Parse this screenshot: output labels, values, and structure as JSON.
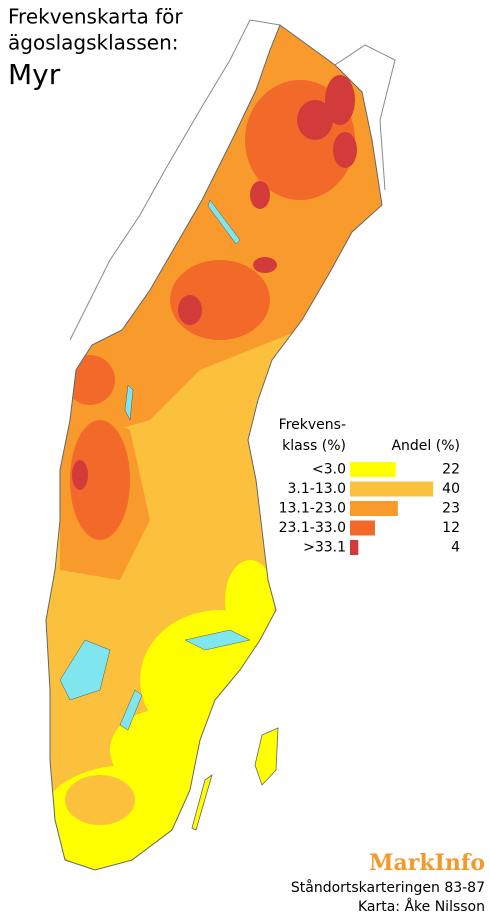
{
  "header": {
    "title_lines": [
      "Frekvenskarta för",
      "ägoslagsklassen:"
    ],
    "subject": "Myr"
  },
  "legend": {
    "class_header": [
      "Frekvens-",
      "klass (%)"
    ],
    "share_header": "Andel (%)",
    "classes": [
      {
        "label": "<3.0",
        "value": 22,
        "color": "#ffff00"
      },
      {
        "label": "3.1-13.0",
        "value": 40,
        "color": "#fbc13c"
      },
      {
        "label": "13.1-23.0",
        "value": 23,
        "color": "#f99b2c"
      },
      {
        "label": "23.1-33.0",
        "value": 12,
        "color": "#f2692a"
      },
      {
        "label": ">33.1",
        "value": 4,
        "color": "#d33a3a"
      }
    ]
  },
  "footer": {
    "brand": "MarkInfo",
    "source": "Ståndortskarteringen 83-87",
    "author": "Karta: Åke Nilsson"
  }
}
